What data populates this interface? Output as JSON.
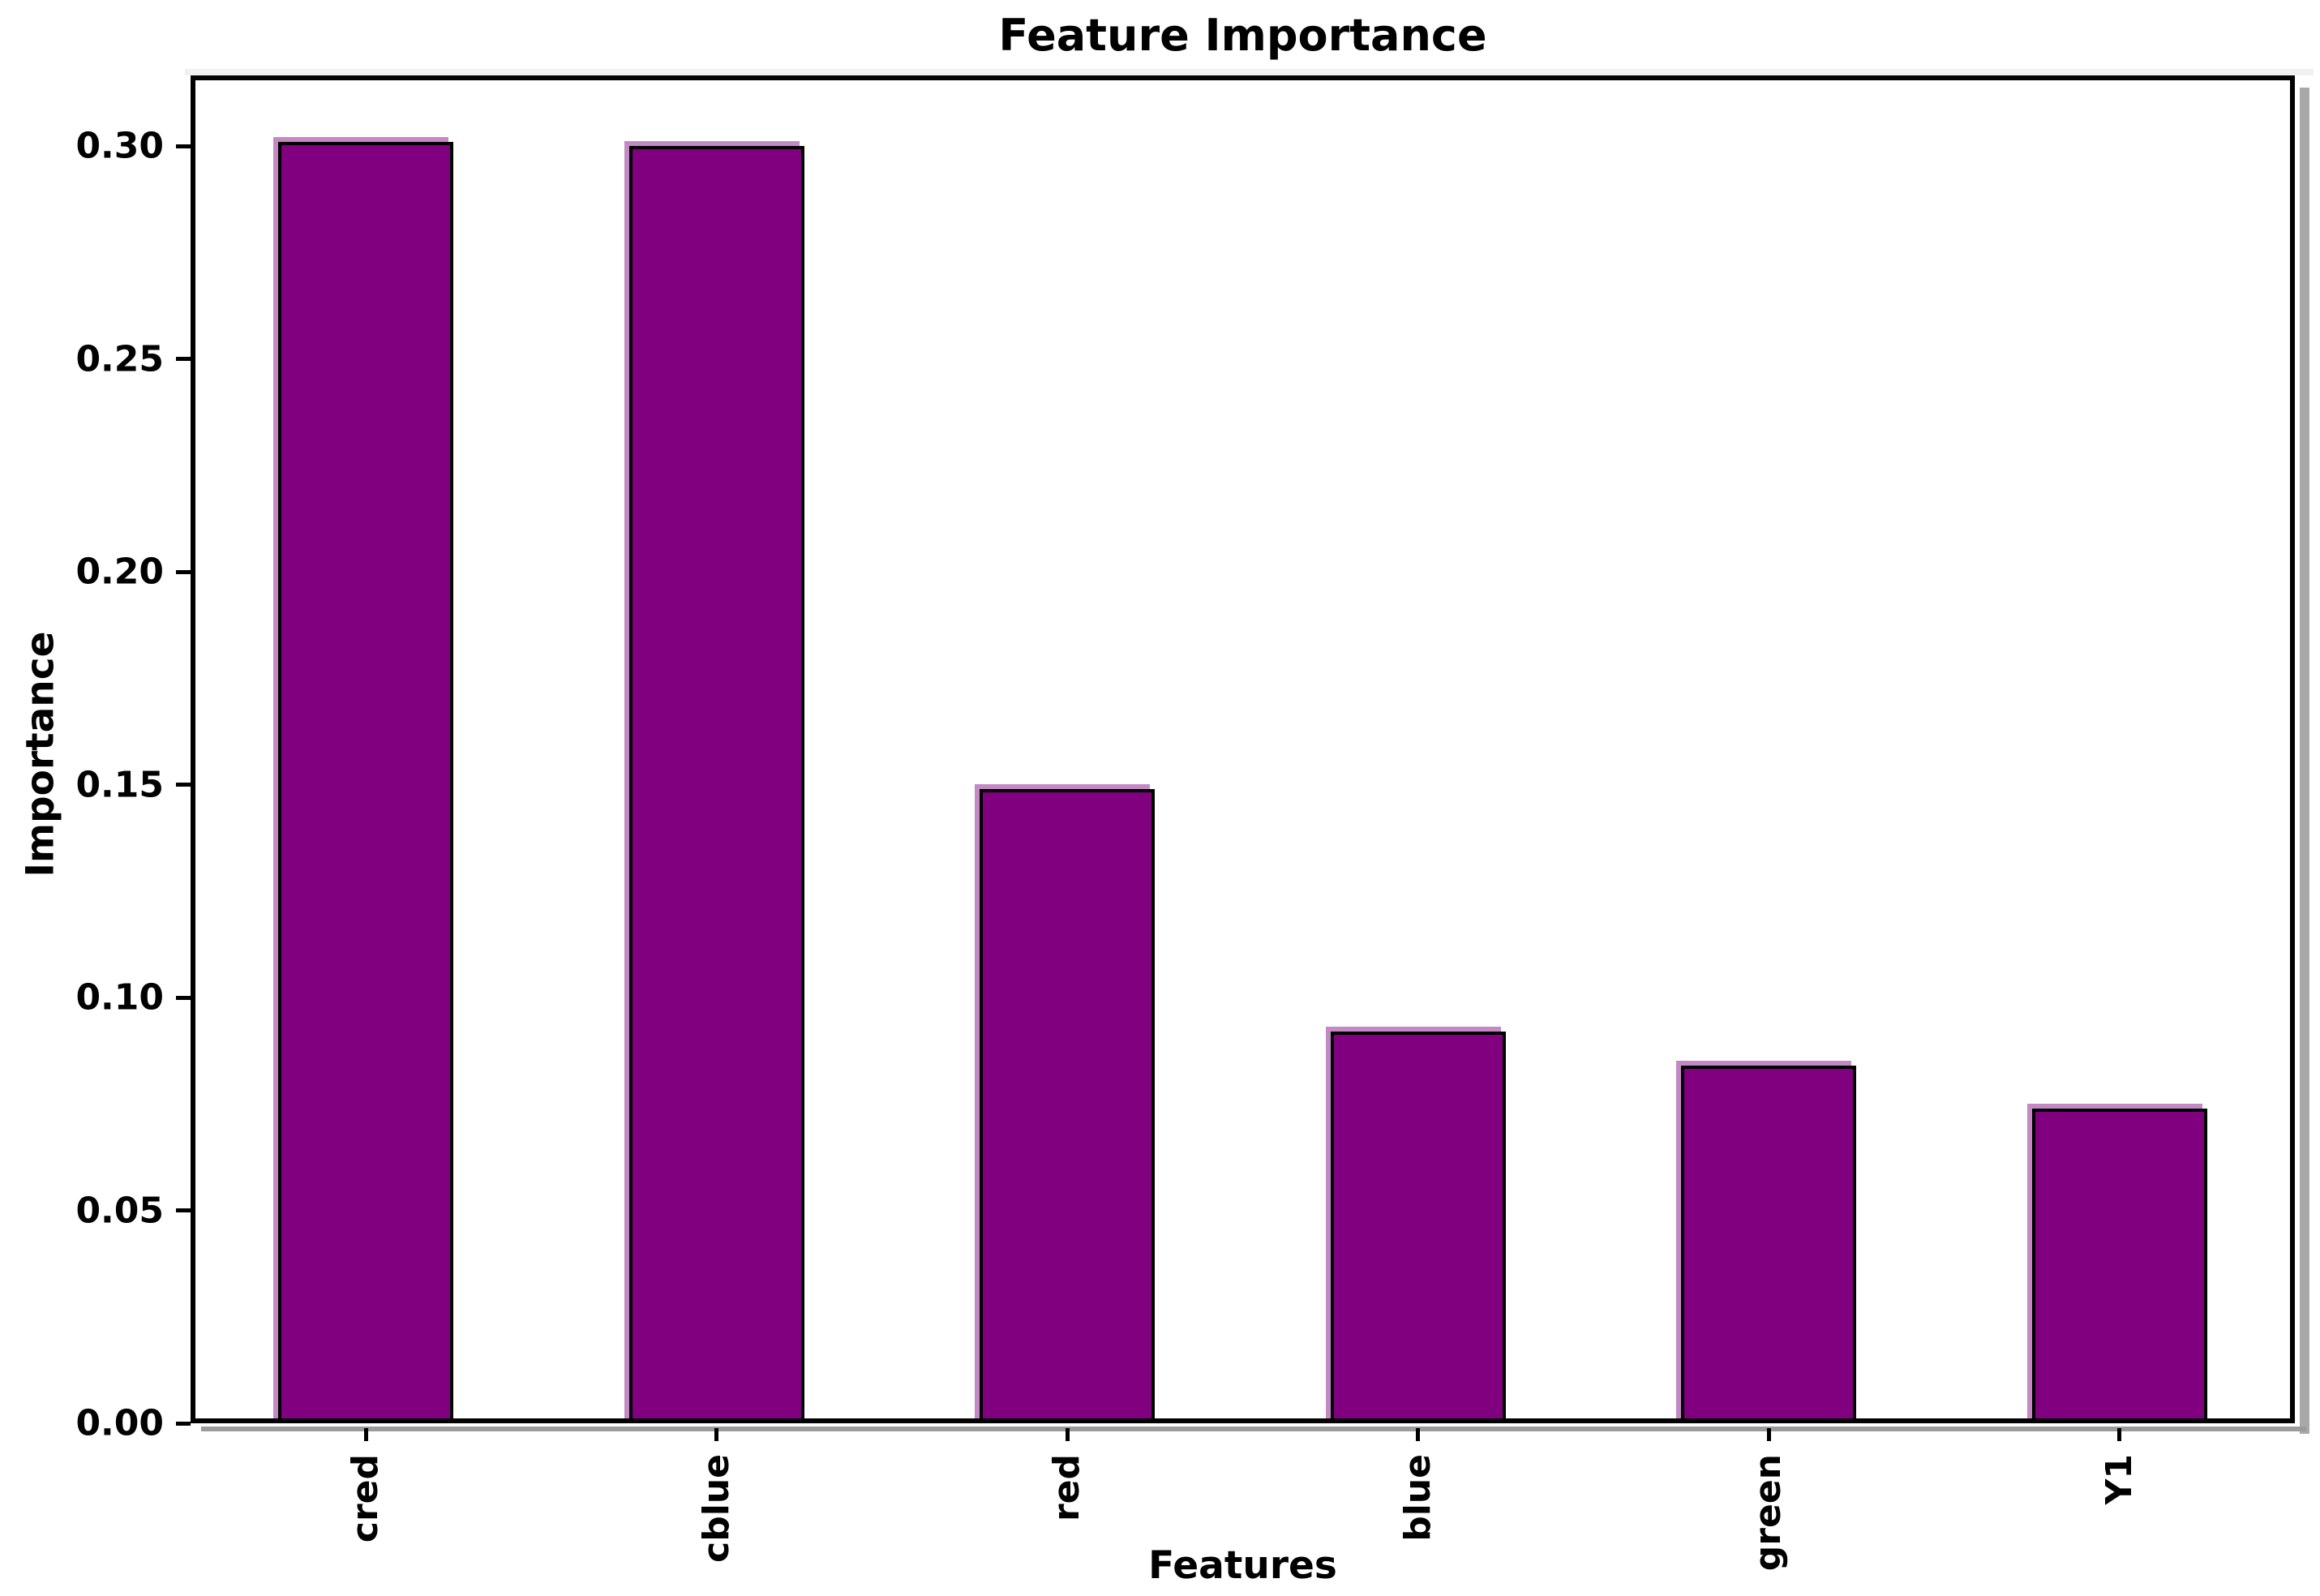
{
  "chart_data": {
    "type": "bar",
    "title": "Feature Importance",
    "xlabel": "Features",
    "ylabel": "Importance",
    "categories": [
      "cred",
      "cblue",
      "red",
      "blue",
      "green",
      "Y1"
    ],
    "values": [
      0.301,
      0.3,
      0.149,
      0.092,
      0.084,
      0.074
    ],
    "yticks": [
      0.0,
      0.05,
      0.1,
      0.15,
      0.2,
      0.25,
      0.3
    ],
    "ytick_labels": [
      "0.00",
      "0.05",
      "0.10",
      "0.15",
      "0.20",
      "0.25",
      "0.30"
    ],
    "ylim": [
      0,
      0.3166
    ],
    "x_tick_label_rotation": 90,
    "grid": false,
    "legend": null,
    "bar_color": "#800080",
    "bar_edge_color": "#000000",
    "bar_halo_color": "#c489c4"
  }
}
